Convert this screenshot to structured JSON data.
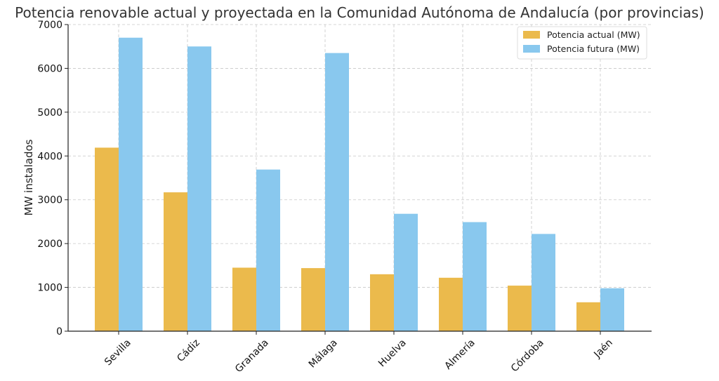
{
  "chart_data": {
    "type": "bar",
    "title": "Potencia renovable actual y proyectada en la Comunidad Autónoma de Andalucía (por provincias)",
    "xlabel": "",
    "ylabel": "MW instalados",
    "categories": [
      "Sevilla",
      "Cádiz",
      "Granada",
      "Málaga",
      "Huelva",
      "Almería",
      "Córdoba",
      "Jaén"
    ],
    "series": [
      {
        "name": "Potencia actual (MW)",
        "color": "#EBBA4C",
        "values": [
          4190,
          3170,
          1450,
          1440,
          1300,
          1220,
          1040,
          660
        ]
      },
      {
        "name": "Potencia futura (MW)",
        "color": "#89C8EE",
        "values": [
          6700,
          6500,
          3690,
          6350,
          2680,
          2490,
          2220,
          980
        ]
      }
    ],
    "ylim": [
      0,
      7000
    ],
    "yticks": [
      0,
      1000,
      2000,
      3000,
      4000,
      5000,
      6000,
      7000
    ],
    "grid": true,
    "legend_position": "top-right"
  }
}
